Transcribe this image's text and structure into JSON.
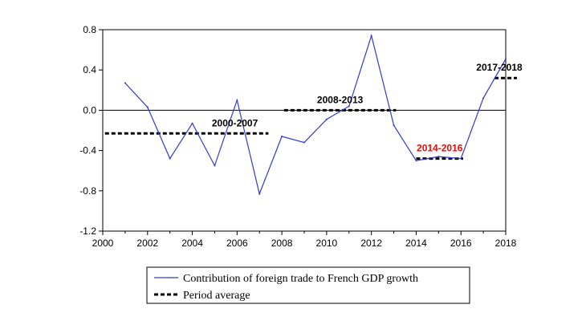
{
  "chart_data": {
    "type": "line",
    "xlim": [
      2000,
      2018
    ],
    "ylim": [
      -1.2,
      0.8
    ],
    "x_ticks": [
      "2000",
      "2002",
      "2004",
      "2006",
      "2008",
      "2010",
      "2012",
      "2014",
      "2016",
      "2018"
    ],
    "y_ticks": [
      "0.8",
      "0.4",
      "0.0",
      "-0.4",
      "-0.8",
      "-1.2"
    ],
    "zero_line": true,
    "series": [
      {
        "name": "Contribution of foreign trade to French GDP growth",
        "style": "line",
        "color": "#2f3bd6",
        "x": [
          2001,
          2002,
          2003,
          2004,
          2005,
          2006,
          2007,
          2008,
          2009,
          2010,
          2011,
          2012,
          2013,
          2014,
          2015,
          2016,
          2017,
          2018
        ],
        "y": [
          0.27,
          0.03,
          -0.48,
          -0.13,
          -0.55,
          0.1,
          -0.83,
          -0.26,
          -0.32,
          -0.09,
          0.04,
          0.74,
          -0.15,
          -0.5,
          -0.46,
          -0.48,
          0.12,
          0.51
        ]
      },
      {
        "name": "Period average",
        "style": "dashed",
        "color": "#000000",
        "periods": [
          {
            "label": "2000-2007",
            "x": [
              2000.1,
              2007.4
            ],
            "y": -0.23,
            "label_color": "#000000"
          },
          {
            "label": "2008-2013",
            "x": [
              2008.1,
              2013.1
            ],
            "y": 0.0,
            "label_color": "#000000"
          },
          {
            "label": "2014-2016",
            "x": [
              2014.0,
              2016.1
            ],
            "y": -0.48,
            "label_color": "#ff0000"
          },
          {
            "label": "2017-2018",
            "x": [
              2017.5,
              2018.5
            ],
            "y": 0.32,
            "label_color": "#000000"
          }
        ]
      }
    ]
  },
  "legend": {
    "line_label": "Contribution of foreign trade to French GDP growth",
    "dash_label": "Period average"
  }
}
